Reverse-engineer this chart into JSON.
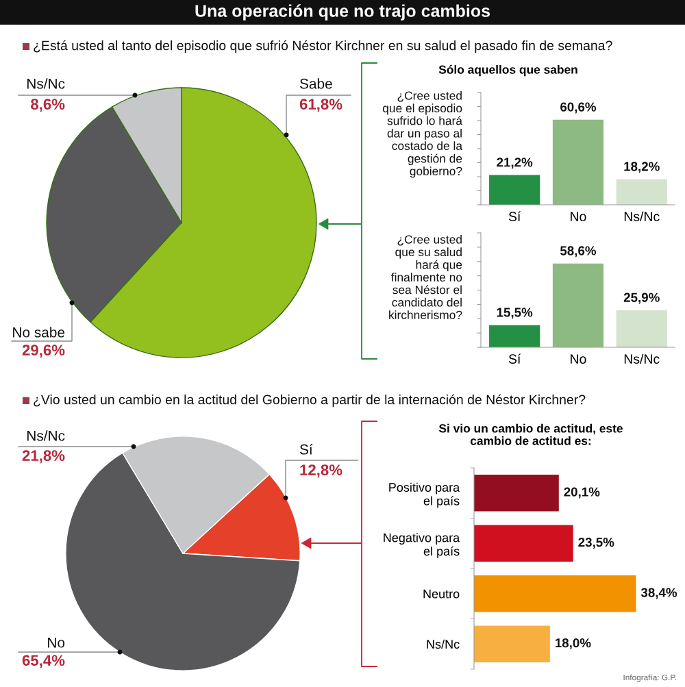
{
  "chart_data": [
    {
      "type": "pie",
      "title": "Una operación que no trajo cambios",
      "subtitle": "¿Está usted al tanto del episodio que sufrió Néstor Kirchner en su salud el pasado fin de semana?",
      "categories": [
        "Sabe",
        "No sabe",
        "Ns/Nc"
      ],
      "values": [
        61.8,
        29.6,
        8.6
      ],
      "colors": [
        "#93c01f",
        "#58585a",
        "#c6c7c9"
      ],
      "value_labels": [
        "61,8%",
        "29,6%",
        "8,6%"
      ]
    },
    {
      "type": "bar",
      "title": "Sólo aquellos que saben",
      "ylabel": "¿Cree usted\nque el episodio\nsufrido lo hará\ndar un paso al\ncostado de la\ngestión de\ngobierno?",
      "categories": [
        "Sí",
        "No",
        "Ns/Nc"
      ],
      "values": [
        21.2,
        60.6,
        18.2
      ],
      "colors": [
        "#249044",
        "#8dba82",
        "#d3e3cd"
      ],
      "value_labels": [
        "21,2%",
        "60,6%",
        "18,2%"
      ],
      "ylim": [
        0,
        80
      ],
      "yticks": [
        {
          "value": 0,
          "label": null
        },
        {
          "value": 10,
          "label": null
        },
        {
          "value": 20,
          "label": null
        },
        {
          "value": 30,
          "label": null
        },
        {
          "value": 40,
          "label": null
        },
        {
          "value": 50,
          "label": null
        },
        {
          "value": 60,
          "label": null
        },
        {
          "value": 70,
          "label": null
        },
        {
          "value": 80,
          "label": null
        }
      ],
      "tick_labels": "x"
    },
    {
      "type": "bar",
      "ylabel": "¿Cree usted\nque su salud\nhará que\nfinalmente no\nsea Néstor el\ncandidato del\nkirchnerismo?",
      "categories": [
        "Sí",
        "No",
        "Ns/Nc"
      ],
      "values": [
        15.5,
        58.6,
        25.9
      ],
      "colors": [
        "#249044",
        "#8dba82",
        "#d3e3cd"
      ],
      "value_labels": [
        "15,5%",
        "58,6%",
        "25,9%"
      ],
      "ylim": [
        0,
        80
      ],
      "yticks": [
        {
          "value": 0,
          "label": null
        },
        {
          "value": 10,
          "label": null
        },
        {
          "value": 20,
          "label": null
        },
        {
          "value": 30,
          "label": null
        },
        {
          "value": 40,
          "label": null
        },
        {
          "value": 50,
          "label": null
        },
        {
          "value": 60,
          "label": null
        },
        {
          "value": 70,
          "label": null
        },
        {
          "value": 80,
          "label": null
        }
      ],
      "tick_labels": "x"
    },
    {
      "type": "pie",
      "subtitle": "¿Vio usted un cambio en la actitud del Gobierno a partir de la internación de Néstor Kirchner?",
      "categories": [
        "Sí",
        "No",
        "Ns/Nc"
      ],
      "values": [
        12.8,
        65.4,
        21.8
      ],
      "colors": [
        "#e4402a",
        "#58585a",
        "#c6c7c9"
      ],
      "value_labels": [
        "12,8%",
        "65,4%",
        "21,8%"
      ]
    },
    {
      "type": "bar",
      "orientation": "horizontal",
      "title": "Si vio un cambio de actitud, este\ncambio de actitud es:",
      "categories": [
        "Positivo para\nel país",
        "Negativo para\nel país",
        "Neutro",
        "Ns/Nc"
      ],
      "values": [
        20.1,
        23.5,
        38.4,
        18.0
      ],
      "colors": [
        "#930f20",
        "#d0101e",
        "#f39200",
        "#f7b040"
      ],
      "value_labels": [
        "20,1%",
        "23,5%",
        "38,4%",
        "18,0%"
      ],
      "tick_labels": "y",
      "annotations": [
        "Infografía: G.P."
      ]
    }
  ]
}
